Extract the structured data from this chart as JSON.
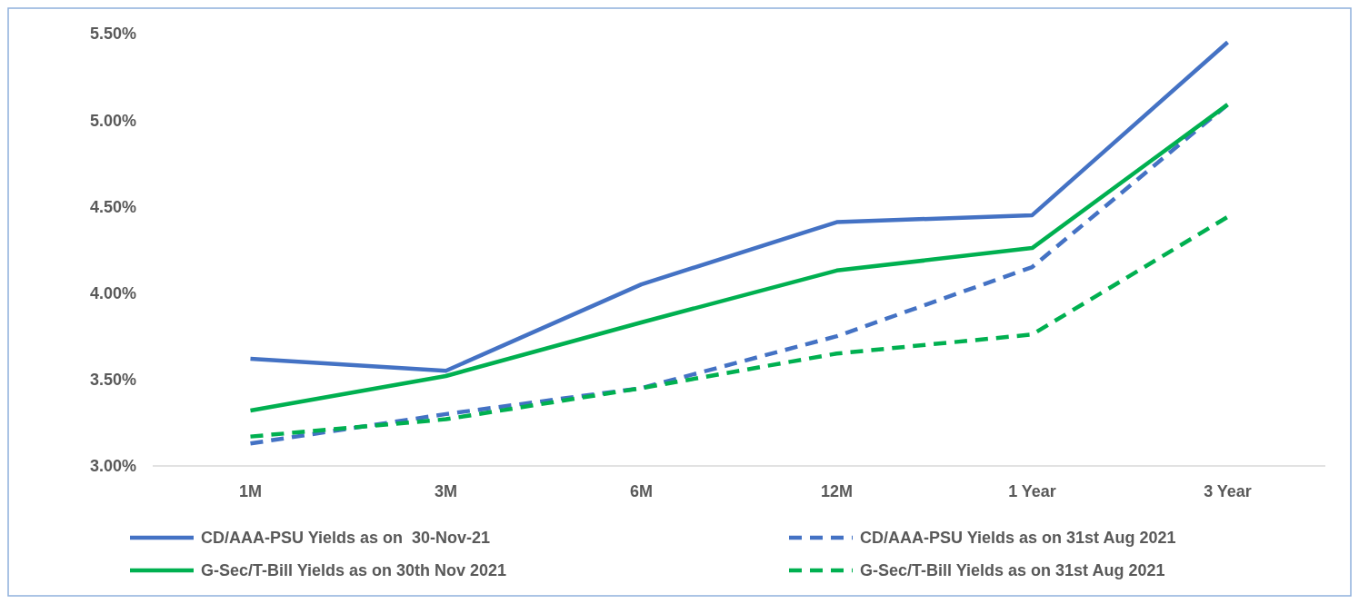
{
  "chart_data": {
    "type": "line",
    "categories": [
      "1M",
      "3M",
      "6M",
      "12M",
      "1 Year",
      "3 Year"
    ],
    "series": [
      {
        "name": "CD/AAA-PSU Yields as on  30-Nov-21",
        "color": "#4472c4",
        "line_style": "solid",
        "values": [
          3.62,
          3.55,
          4.05,
          4.41,
          4.45,
          5.45
        ]
      },
      {
        "name": "CD/AAA-PSU Yields as on 31st Aug 2021",
        "color": "#4472c4",
        "line_style": "dashed",
        "values": [
          3.13,
          3.3,
          3.45,
          3.75,
          4.15,
          5.09
        ]
      },
      {
        "name": "G-Sec/T-Bill Yields as on 30th Nov 2021",
        "color": "#00b050",
        "line_style": "solid",
        "values": [
          3.32,
          3.52,
          3.83,
          4.13,
          4.26,
          5.09
        ]
      },
      {
        "name": "G-Sec/T-Bill Yields as on 31st Aug 2021",
        "color": "#00b050",
        "line_style": "dashed",
        "values": [
          3.17,
          3.27,
          3.45,
          3.65,
          3.76,
          4.44
        ]
      }
    ],
    "ylim": [
      3.0,
      5.5
    ],
    "yticks": [
      {
        "value": 3.0,
        "label": "3.00%"
      },
      {
        "value": 3.5,
        "label": "3.50%"
      },
      {
        "value": 4.0,
        "label": "4.00%"
      },
      {
        "value": 4.5,
        "label": "4.50%"
      },
      {
        "value": 5.0,
        "label": "5.00%"
      },
      {
        "value": 5.5,
        "label": "5.50%"
      }
    ],
    "grid": false,
    "legend": "bottom",
    "marker": "none"
  }
}
